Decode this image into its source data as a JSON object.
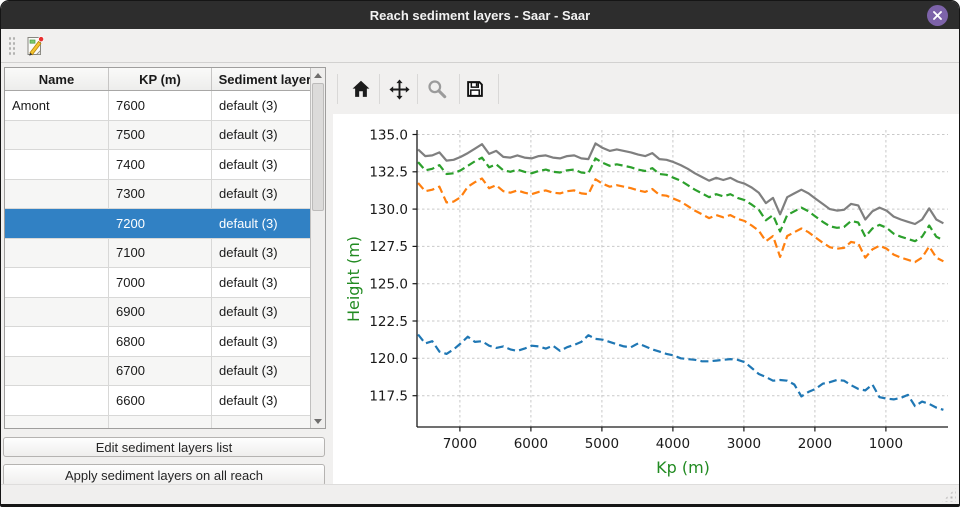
{
  "window": {
    "title": "Reach sediment layers - Saar - Saar"
  },
  "colors": {
    "titlebar": "#2d2d2d",
    "close_button": "#7d63a9",
    "selection": "#3181c4",
    "axis_label_green": "#228b22"
  },
  "main_toolbar": {
    "buttons": [
      {
        "icon": "edit-document-icon"
      }
    ]
  },
  "table": {
    "columns": [
      "Name",
      "KP (m)",
      "Sediment layers"
    ],
    "rows": [
      {
        "name": "Amont",
        "kp": "7600",
        "layers": "default (3)",
        "selected": false
      },
      {
        "name": "",
        "kp": "7500",
        "layers": "default (3)",
        "selected": false
      },
      {
        "name": "",
        "kp": "7400",
        "layers": "default (3)",
        "selected": false
      },
      {
        "name": "",
        "kp": "7300",
        "layers": "default (3)",
        "selected": false
      },
      {
        "name": "",
        "kp": "7200",
        "layers": "default (3)",
        "selected": true
      },
      {
        "name": "",
        "kp": "7100",
        "layers": "default (3)",
        "selected": false
      },
      {
        "name": "",
        "kp": "7000",
        "layers": "default (3)",
        "selected": false
      },
      {
        "name": "",
        "kp": "6900",
        "layers": "default (3)",
        "selected": false
      },
      {
        "name": "",
        "kp": "6800",
        "layers": "default (3)",
        "selected": false
      },
      {
        "name": "",
        "kp": "6700",
        "layers": "default (3)",
        "selected": false
      },
      {
        "name": "",
        "kp": "6600",
        "layers": "default (3)",
        "selected": false
      }
    ]
  },
  "actions": {
    "edit_button": "Edit sediment layers list",
    "apply_button": "Apply sediment layers on all reach"
  },
  "plot_toolbar": {
    "icons": [
      "home-icon",
      "pan-icon",
      "zoom-icon",
      "save-icon"
    ]
  },
  "chart_data": {
    "type": "line",
    "xlabel": "Kp (m)",
    "ylabel": "Height (m)",
    "axis_label_color": "#228b22",
    "grid": true,
    "x_ticks": [
      7000,
      6000,
      5000,
      4000,
      3000,
      2000,
      1000
    ],
    "y_ticks": [
      117.5,
      120.0,
      122.5,
      125.0,
      127.5,
      130.0,
      132.5,
      135.0
    ],
    "xlim": [
      7605,
      125
    ],
    "ylim": [
      115.4,
      135.3
    ],
    "x_axis_inverted": true,
    "x": [
      7590,
      7490,
      7390,
      7290,
      7190,
      7090,
      6990,
      6890,
      6790,
      6690,
      6590,
      6490,
      6390,
      6290,
      6190,
      6090,
      5990,
      5890,
      5790,
      5690,
      5590,
      5490,
      5390,
      5290,
      5190,
      5090,
      4990,
      4890,
      4790,
      4690,
      4590,
      4490,
      4390,
      4290,
      4190,
      4090,
      3990,
      3890,
      3790,
      3690,
      3590,
      3490,
      3390,
      3290,
      3190,
      3090,
      2990,
      2890,
      2790,
      2690,
      2590,
      2490,
      2390,
      2290,
      2190,
      2090,
      1990,
      1890,
      1790,
      1690,
      1590,
      1490,
      1390,
      1290,
      1190,
      1090,
      990,
      890,
      790,
      690,
      590,
      490,
      390,
      290,
      190
    ],
    "series": [
      {
        "name": "gray-solid-top",
        "color": "#7f7f7f",
        "style": "solid",
        "values": [
          134.0,
          133.55,
          133.6,
          133.8,
          133.25,
          133.3,
          133.5,
          133.75,
          134.05,
          134.35,
          133.7,
          133.9,
          133.5,
          133.45,
          133.6,
          133.45,
          133.4,
          133.55,
          133.6,
          133.45,
          133.4,
          133.55,
          133.6,
          133.4,
          133.35,
          134.4,
          134.1,
          133.9,
          134.0,
          133.9,
          133.8,
          133.65,
          133.55,
          133.75,
          133.35,
          133.3,
          133.15,
          132.95,
          132.7,
          132.4,
          132.15,
          131.9,
          132.1,
          131.95,
          132.1,
          131.85,
          131.7,
          131.45,
          131.1,
          130.4,
          130.75,
          129.65,
          130.8,
          131.05,
          131.3,
          131.05,
          130.7,
          130.35,
          130.0,
          129.9,
          129.95,
          130.35,
          130.25,
          129.3,
          129.85,
          130.1,
          129.9,
          129.5,
          129.3,
          129.15,
          129.0,
          129.3,
          130.05,
          129.3,
          129.05
        ]
      },
      {
        "name": "green-dashed",
        "color": "#2ca02c",
        "style": "dashed",
        "values": [
          133.15,
          132.6,
          132.7,
          132.95,
          132.35,
          132.4,
          132.6,
          132.9,
          133.2,
          133.45,
          132.8,
          133.0,
          132.6,
          132.5,
          132.65,
          132.5,
          132.4,
          132.55,
          132.65,
          132.5,
          132.45,
          132.6,
          132.65,
          132.45,
          132.4,
          133.4,
          133.1,
          132.9,
          133.0,
          132.9,
          132.8,
          132.65,
          132.55,
          132.75,
          132.35,
          132.3,
          132.1,
          131.9,
          131.6,
          131.3,
          131.05,
          130.8,
          131.0,
          130.85,
          131.0,
          130.75,
          130.6,
          130.3,
          129.95,
          129.25,
          129.6,
          128.5,
          129.6,
          129.85,
          130.1,
          129.85,
          129.5,
          129.15,
          128.85,
          128.75,
          128.8,
          129.2,
          129.1,
          128.15,
          128.7,
          128.95,
          128.75,
          128.35,
          128.15,
          128.0,
          127.85,
          128.15,
          128.9,
          128.15,
          127.9
        ]
      },
      {
        "name": "orange-dashed",
        "color": "#ff7f0e",
        "style": "dashed",
        "values": [
          131.75,
          131.2,
          131.3,
          131.5,
          130.45,
          130.5,
          130.8,
          131.5,
          131.8,
          132.05,
          131.4,
          131.6,
          131.2,
          131.1,
          131.25,
          131.1,
          131.0,
          131.15,
          131.25,
          131.1,
          131.05,
          131.2,
          131.25,
          131.05,
          131.0,
          132.0,
          131.7,
          131.5,
          131.6,
          131.5,
          131.4,
          131.25,
          131.15,
          131.35,
          130.95,
          130.9,
          130.7,
          130.5,
          130.2,
          129.9,
          129.65,
          129.4,
          129.6,
          129.45,
          129.6,
          129.35,
          129.2,
          128.9,
          128.55,
          127.85,
          128.2,
          126.8,
          128.2,
          128.45,
          128.7,
          128.45,
          128.1,
          127.75,
          127.45,
          127.35,
          127.4,
          127.8,
          127.7,
          126.75,
          127.3,
          127.55,
          127.35,
          126.95,
          126.75,
          126.6,
          126.45,
          126.75,
          127.5,
          126.75,
          126.5
        ]
      },
      {
        "name": "blue-dashed-bottom",
        "color": "#1f77b4",
        "style": "dashed",
        "values": [
          121.6,
          121.0,
          121.15,
          120.45,
          120.3,
          120.6,
          121.0,
          121.45,
          121.1,
          121.15,
          120.85,
          120.7,
          120.8,
          120.6,
          120.5,
          120.65,
          120.85,
          120.8,
          120.65,
          120.85,
          120.5,
          120.75,
          120.9,
          121.1,
          121.55,
          121.3,
          121.25,
          121.1,
          120.95,
          120.8,
          120.75,
          121.0,
          120.8,
          120.6,
          120.45,
          120.3,
          120.2,
          120.0,
          119.95,
          119.9,
          119.8,
          119.8,
          119.85,
          119.9,
          119.95,
          119.9,
          119.75,
          119.35,
          118.95,
          118.75,
          118.5,
          118.55,
          118.5,
          118.25,
          117.45,
          117.75,
          117.95,
          118.3,
          118.4,
          118.55,
          118.5,
          118.2,
          117.95,
          117.85,
          118.25,
          117.4,
          117.3,
          117.25,
          117.35,
          117.55,
          116.8,
          117.1,
          116.95,
          116.7,
          116.55
        ]
      }
    ]
  }
}
